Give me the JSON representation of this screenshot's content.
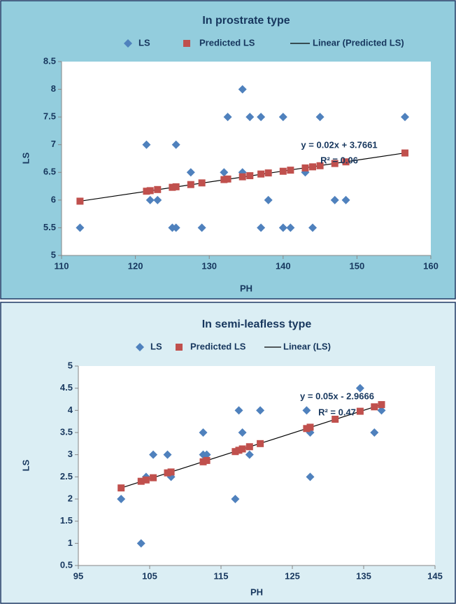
{
  "chart_data": [
    {
      "type": "scatter",
      "title": "In prostrate type",
      "x_label": "PH",
      "y_label": "LS",
      "xlim": [
        110,
        160
      ],
      "xticks": [
        110,
        120,
        130,
        140,
        150,
        160
      ],
      "ylim": [
        5,
        8.5
      ],
      "yticks": [
        5,
        5.5,
        6,
        6.5,
        7,
        7.5,
        8,
        8.5
      ],
      "grid": false,
      "series": [
        {
          "name": "LS",
          "color": "#4f81bd",
          "marker": "diamond",
          "x": [
            112.5,
            121.5,
            122,
            123,
            125,
            125.5,
            125.5,
            127.5,
            129,
            132,
            132.5,
            134.5,
            134.5,
            135.5,
            137,
            137,
            138,
            140,
            140,
            141,
            143,
            144,
            145,
            147,
            148.5,
            156.5
          ],
          "values": [
            5.5,
            7,
            6,
            6,
            5.5,
            7,
            5.5,
            6.5,
            5.5,
            6.5,
            7.5,
            8,
            6.5,
            7.5,
            7.5,
            5.5,
            6,
            7.5,
            5.5,
            5.5,
            6.5,
            5.5,
            7.5,
            6,
            6,
            7.5
          ]
        },
        {
          "name": "Predicted LS",
          "color": "#c0504d",
          "marker": "square",
          "x": [
            112.5,
            121.5,
            122,
            123,
            125,
            125.5,
            127.5,
            129,
            132,
            132.5,
            134.5,
            135.5,
            137,
            138,
            140,
            141,
            143,
            144,
            145,
            147,
            148.5,
            156.5
          ],
          "values": [
            5.98,
            6.16,
            6.17,
            6.19,
            6.23,
            6.24,
            6.28,
            6.31,
            6.37,
            6.38,
            6.42,
            6.44,
            6.47,
            6.49,
            6.52,
            6.54,
            6.58,
            6.6,
            6.62,
            6.66,
            6.69,
            6.85
          ]
        }
      ],
      "trendline": {
        "name": "Linear (Predicted LS)",
        "color": "#000000",
        "x": [
          112.5,
          156.5
        ],
        "values": [
          5.98,
          6.85
        ],
        "equation": "y = 0.02x + 3.7661",
        "r_squared": "R² = 0.06"
      }
    },
    {
      "type": "scatter",
      "title": "In semi-leafless type",
      "x_label": "PH",
      "y_label": "LS",
      "xlim": [
        95,
        145
      ],
      "xticks": [
        95,
        105,
        115,
        125,
        135,
        145
      ],
      "ylim": [
        0.5,
        5
      ],
      "yticks": [
        0.5,
        1,
        1.5,
        2,
        2.5,
        3,
        3.5,
        4,
        4.5,
        5
      ],
      "grid": false,
      "series": [
        {
          "name": "LS",
          "color": "#4f81bd",
          "marker": "diamond",
          "x": [
            101,
            103.8,
            104.5,
            105.5,
            107.5,
            108,
            112.5,
            112.5,
            113,
            117,
            117.5,
            118,
            119,
            120.5,
            127,
            127.5,
            127.5,
            134.5,
            136.5,
            137.5
          ],
          "values": [
            2,
            1,
            2.5,
            3,
            3,
            2.5,
            3.5,
            3,
            3,
            2,
            4,
            3.5,
            3,
            4,
            4,
            3.5,
            2.5,
            4.5,
            3.5,
            4
          ]
        },
        {
          "name": "Predicted LS",
          "color": "#c0504d",
          "marker": "square",
          "x": [
            101,
            103.8,
            104.5,
            105.5,
            107.5,
            108,
            112.5,
            113,
            117,
            117.5,
            118,
            119,
            120.5,
            127,
            127.5,
            131,
            134.5,
            136.5,
            137.5
          ],
          "values": [
            2.25,
            2.4,
            2.43,
            2.48,
            2.59,
            2.61,
            2.84,
            2.87,
            3.07,
            3.1,
            3.13,
            3.18,
            3.25,
            3.59,
            3.62,
            3.8,
            3.98,
            4.08,
            4.13
          ]
        }
      ],
      "trendline": {
        "name": "Linear (LS)",
        "color": "#000000",
        "x": [
          101,
          137.5
        ],
        "values": [
          2.25,
          4.13
        ],
        "equation": "y = 0.05x - 2.9666",
        "r_squared": "R² = 0.47"
      }
    }
  ]
}
